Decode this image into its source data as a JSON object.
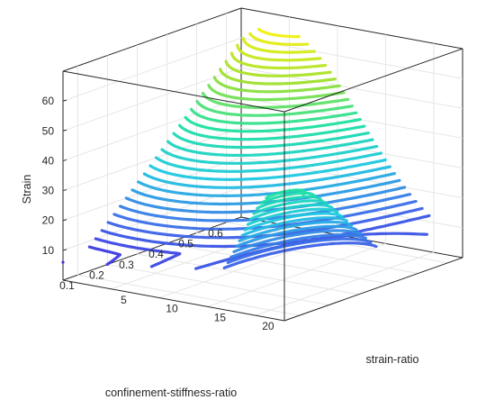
{
  "chart_data": {
    "type": "contour3",
    "title": "",
    "xlabel": "confinement-stiffness-ratio",
    "ylabel": "strain-ratio",
    "zlabel": "Strain",
    "xlim": [
      0.05,
      0.65
    ],
    "ylim": [
      0,
      23
    ],
    "zlim": [
      0,
      70
    ],
    "x_ticks": [
      0.1,
      0.2,
      0.3,
      0.4,
      0.5,
      0.6
    ],
    "x_tick_labels": [
      "0.1",
      "0.2",
      "0.3",
      "0.4",
      "0.5",
      "0.6"
    ],
    "y_ticks": [
      5,
      10,
      15,
      20
    ],
    "y_tick_labels": [
      "5",
      "10",
      "15",
      "20"
    ],
    "z_ticks": [
      10,
      20,
      30,
      40,
      50,
      60
    ],
    "z_tick_labels": [
      "10",
      "20",
      "30",
      "40",
      "50",
      "60"
    ],
    "colormap": [
      "#3d1fe0",
      "#3a6ee8",
      "#1ec8e0",
      "#1ee0a0",
      "#9ee02c",
      "#f0f010"
    ],
    "grid": true,
    "box": "full",
    "contour_levels": [
      4,
      6,
      8,
      10,
      12,
      14,
      16,
      18,
      20,
      22,
      24,
      26,
      28,
      30,
      32,
      34,
      36,
      38,
      40,
      42,
      44,
      46,
      48,
      50,
      52,
      54,
      56,
      58,
      60,
      62,
      64
    ],
    "peak": {
      "confinement_stiffness_ratio": 0.6,
      "strain_ratio": 4,
      "strain": 66
    },
    "secondary_peak": {
      "confinement_stiffness_ratio": 0.1,
      "strain_ratio": 22,
      "strain": 42
    }
  }
}
